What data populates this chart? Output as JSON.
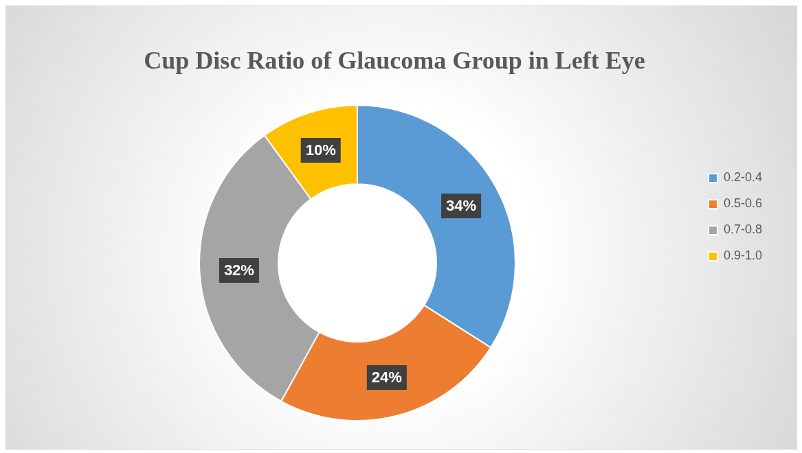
{
  "chart_data": {
    "type": "donut",
    "title": "Cup Disc Ratio of Glaucoma Group in Left Eye",
    "categories": [
      "0.2-0.4",
      "0.5-0.6",
      "0.7-0.8",
      "0.9-1.0"
    ],
    "values": [
      34,
      24,
      32,
      10
    ],
    "value_labels": [
      "34%",
      "24%",
      "32%",
      "10%"
    ],
    "colors": [
      "#5b9bd5",
      "#ed7d31",
      "#a5a5a5",
      "#ffc000"
    ],
    "legend": "right"
  }
}
